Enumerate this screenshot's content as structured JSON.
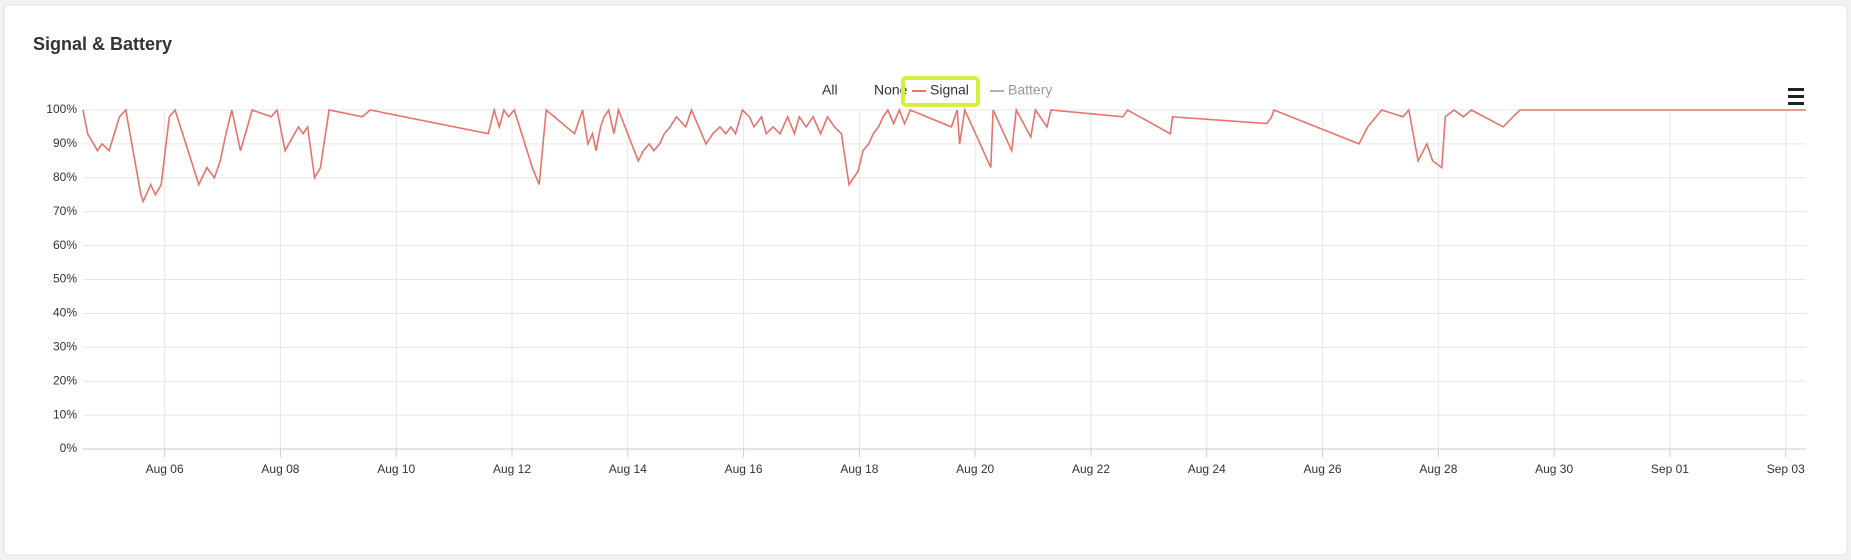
{
  "chart_data": {
    "type": "line",
    "title": "Signal & Battery",
    "legend_controls": [
      "All",
      "None"
    ],
    "xlim": [
      4.59,
      34.35
    ],
    "xticks": [
      {
        "value": 6,
        "label": "Aug 06"
      },
      {
        "value": 8,
        "label": "Aug 08"
      },
      {
        "value": 10,
        "label": "Aug 10"
      },
      {
        "value": 12,
        "label": "Aug 12"
      },
      {
        "value": 14,
        "label": "Aug 14"
      },
      {
        "value": 16,
        "label": "Aug 16"
      },
      {
        "value": 18,
        "label": "Aug 18"
      },
      {
        "value": 20,
        "label": "Aug 20"
      },
      {
        "value": 22,
        "label": "Aug 22"
      },
      {
        "value": 24,
        "label": "Aug 24"
      },
      {
        "value": 26,
        "label": "Aug 26"
      },
      {
        "value": 28,
        "label": "Aug 28"
      },
      {
        "value": 30,
        "label": "Aug 30"
      },
      {
        "value": 32,
        "label": "Sep 01"
      },
      {
        "value": 34,
        "label": "Sep 03"
      }
    ],
    "ylim": [
      0,
      100
    ],
    "yticks": [
      {
        "value": 0,
        "label": "0%"
      },
      {
        "value": 10,
        "label": "10%"
      },
      {
        "value": 20,
        "label": "20%"
      },
      {
        "value": 30,
        "label": "30%"
      },
      {
        "value": 40,
        "label": "40%"
      },
      {
        "value": 50,
        "label": "50%"
      },
      {
        "value": 60,
        "label": "60%"
      },
      {
        "value": 70,
        "label": "70%"
      },
      {
        "value": 80,
        "label": "80%"
      },
      {
        "value": 90,
        "label": "90%"
      },
      {
        "value": 100,
        "label": "100%"
      }
    ],
    "grid": true,
    "series": [
      {
        "name": "Signal",
        "color": "#e8736c",
        "visible": true,
        "x": [
          4.59,
          4.67,
          4.84,
          4.92,
          5.04,
          5.22,
          5.33,
          5.59,
          5.63,
          5.76,
          5.84,
          5.94,
          6.08,
          6.18,
          6.59,
          6.73,
          6.86,
          6.96,
          7.06,
          7.16,
          7.31,
          7.43,
          7.51,
          7.84,
          7.94,
          8.08,
          8.31,
          8.39,
          8.47,
          8.59,
          8.69,
          8.84,
          9.41,
          9.55,
          11.59,
          11.69,
          11.78,
          11.86,
          11.94,
          12.04,
          12.35,
          12.47,
          12.59,
          13.08,
          13.22,
          13.31,
          13.39,
          13.45,
          13.53,
          13.59,
          13.67,
          13.76,
          13.84,
          14.18,
          14.27,
          14.37,
          14.45,
          14.55,
          14.63,
          14.73,
          14.84,
          15.0,
          15.1,
          15.35,
          15.47,
          15.59,
          15.69,
          15.78,
          15.86,
          15.98,
          16.1,
          16.18,
          16.31,
          16.39,
          16.51,
          16.63,
          16.76,
          16.88,
          16.96,
          17.08,
          17.2,
          17.33,
          17.45,
          17.57,
          17.69,
          17.82,
          17.98,
          18.06,
          18.16,
          18.24,
          18.33,
          18.41,
          18.49,
          18.59,
          18.69,
          18.78,
          18.88,
          19.59,
          19.69,
          19.73,
          19.82,
          20.27,
          20.31,
          20.63,
          20.71,
          20.96,
          21.04,
          21.24,
          21.31,
          22.55,
          22.63,
          23.37,
          23.41,
          25.04,
          25.12,
          25.16,
          26.63,
          26.78,
          27.02,
          27.39,
          27.49,
          27.65,
          27.8,
          27.9,
          28.06,
          28.12,
          28.27,
          28.43,
          28.57,
          29.12,
          29.29,
          29.41,
          34.35
        ],
        "values": [
          100,
          93,
          88,
          90,
          88,
          98,
          100,
          75,
          73,
          78,
          75,
          78,
          98,
          100,
          78,
          83,
          80,
          85,
          93,
          100,
          88,
          95,
          100,
          98,
          100,
          88,
          95,
          93,
          95,
          80,
          83,
          100,
          98,
          100,
          93,
          100,
          95,
          100,
          98,
          100,
          83,
          78,
          100,
          93,
          100,
          90,
          93,
          88,
          95,
          98,
          100,
          93,
          100,
          85,
          88,
          90,
          88,
          90,
          93,
          95,
          98,
          95,
          100,
          90,
          93,
          95,
          93,
          95,
          93,
          100,
          98,
          95,
          98,
          93,
          95,
          93,
          98,
          93,
          98,
          95,
          98,
          93,
          98,
          95,
          93,
          78,
          82,
          88,
          90,
          93,
          95,
          98,
          100,
          96,
          100,
          96,
          100,
          95,
          100,
          90,
          100,
          83,
          100,
          88,
          100,
          92,
          100,
          95,
          100,
          98,
          100,
          93,
          98,
          96,
          98,
          100,
          90,
          95,
          100,
          98,
          100,
          85,
          90,
          85,
          83,
          98,
          100,
          98,
          100,
          95,
          98,
          100,
          100
        ]
      },
      {
        "name": "Battery",
        "color": "#9fb8bf",
        "visible": false
      }
    ]
  }
}
